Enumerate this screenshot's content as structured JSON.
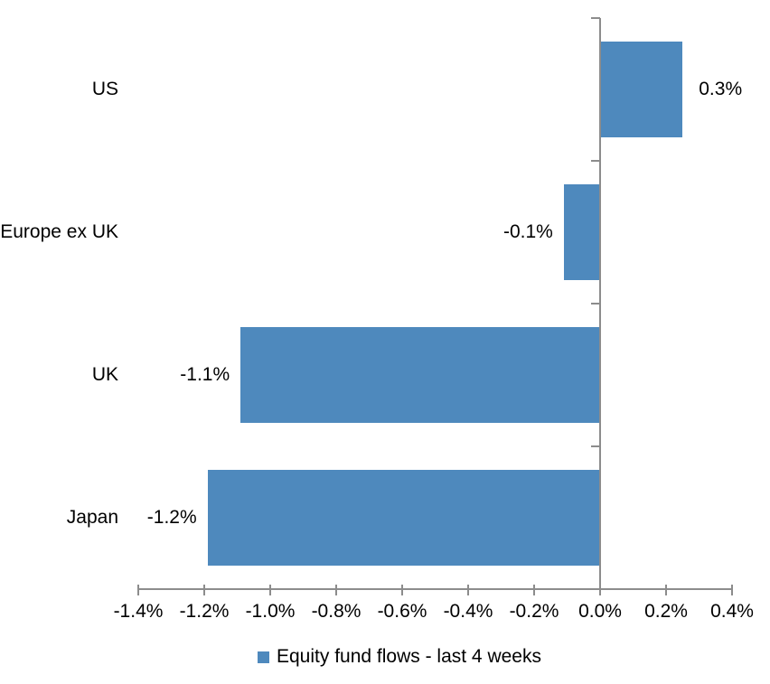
{
  "chart_data": {
    "type": "bar",
    "orientation": "horizontal",
    "categories": [
      "US",
      "Europe ex UK",
      "UK",
      "Japan"
    ],
    "values": [
      0.25,
      -0.11,
      -1.09,
      -1.19
    ],
    "data_labels": [
      "0.3%",
      "-0.1%",
      "-1.1%",
      "-1.2%"
    ],
    "series": [
      {
        "name": "Equity fund flows - last 4 weeks",
        "values": [
          0.25,
          -0.11,
          -1.09,
          -1.19
        ]
      }
    ],
    "xlim": [
      -1.4,
      0.4
    ],
    "x_ticks": [
      -1.4,
      -1.2,
      -1.0,
      -0.8,
      -0.6,
      -0.4,
      -0.2,
      0.0,
      0.2,
      0.4
    ],
    "x_tick_labels": [
      "-1.4%",
      "-1.2%",
      "-1.0%",
      "-0.8%",
      "-0.6%",
      "-0.4%",
      "-0.2%",
      "0.0%",
      "0.2%",
      "0.4%"
    ],
    "grid": false,
    "legend_position": "bottom",
    "bar_color": "#4E89BD",
    "axis_color": "#8C8C8C",
    "text_color": "#000000"
  },
  "legend": {
    "label": "Equity fund flows - last 4 weeks",
    "marker_color": "#4E89BD"
  }
}
